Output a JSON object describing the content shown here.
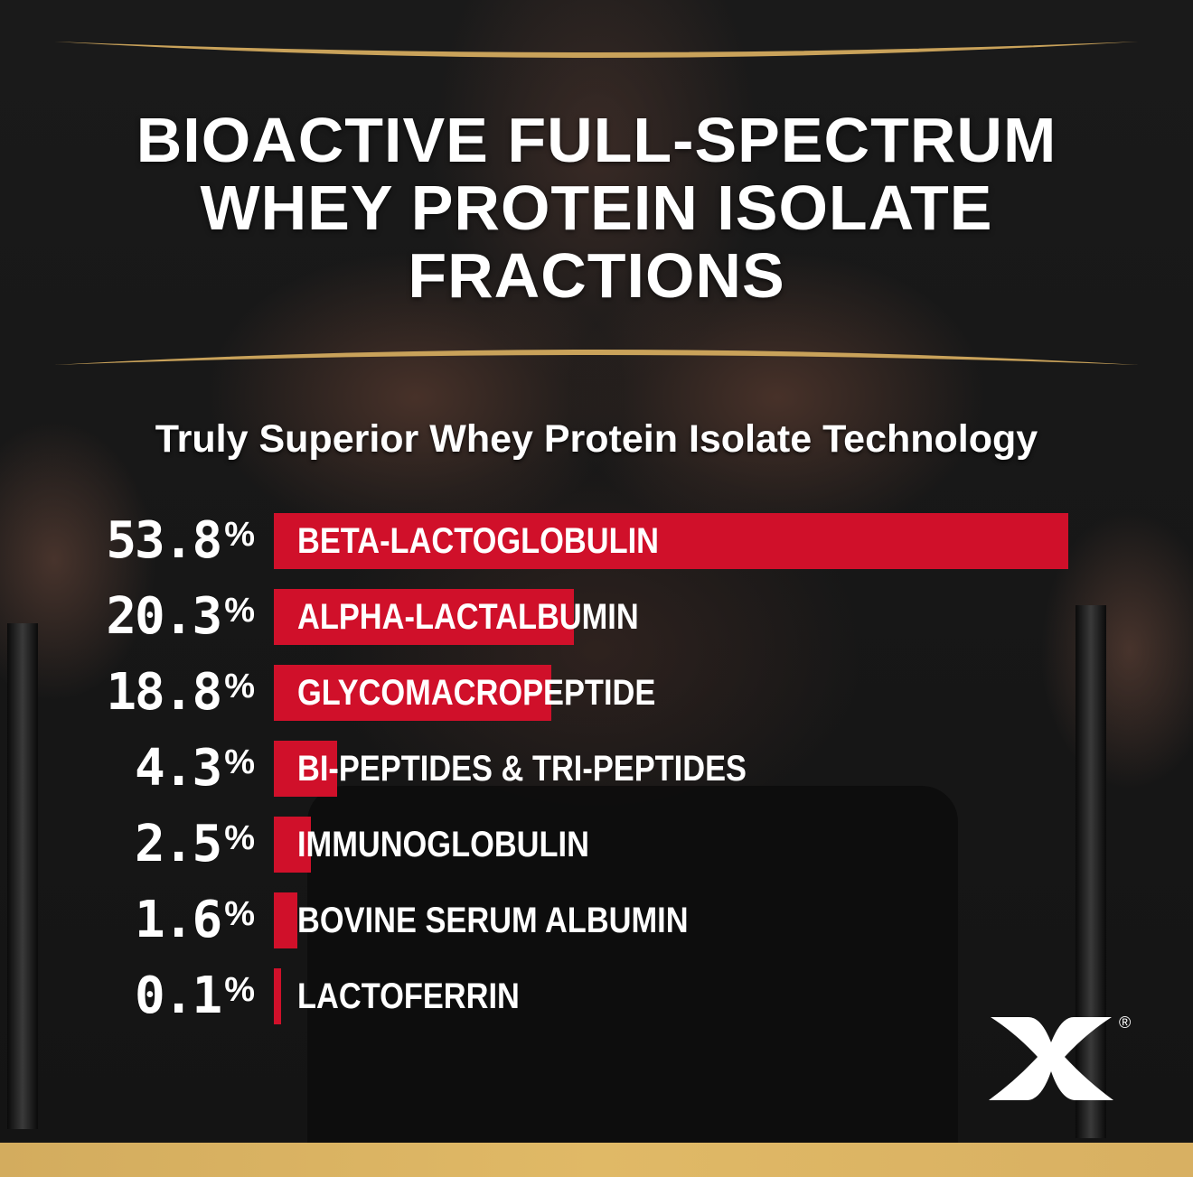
{
  "title_lines": [
    "BIOACTIVE FULL-SPECTRUM",
    "WHEY PROTEIN ISOLATE",
    "FRACTIONS"
  ],
  "subtitle": "Truly Superior Whey Protein Isolate Technology",
  "brand_registered_mark": "®",
  "colors": {
    "bar": "#d0102a",
    "gold": "#d8b062",
    "background": "#161616"
  },
  "chart_data": {
    "type": "bar",
    "orientation": "horizontal",
    "unit": "%",
    "categories": [
      "BETA-LACTOGLOBULIN",
      "ALPHA-LACTALBUMIN",
      "GLYCOMACROPEPTIDE",
      "BI-PEPTIDES & TRI-PEPTIDES",
      "IMMUNOGLOBULIN",
      "BOVINE SERUM ALBUMIN",
      "LACTOFERRIN"
    ],
    "values": [
      53.8,
      20.3,
      18.8,
      4.3,
      2.5,
      1.6,
      0.1
    ],
    "value_labels": [
      "53.8",
      "20.3",
      "18.8",
      "4.3",
      "2.5",
      "1.6",
      "0.1"
    ],
    "xlim": [
      0,
      53.8
    ],
    "grid": false
  }
}
